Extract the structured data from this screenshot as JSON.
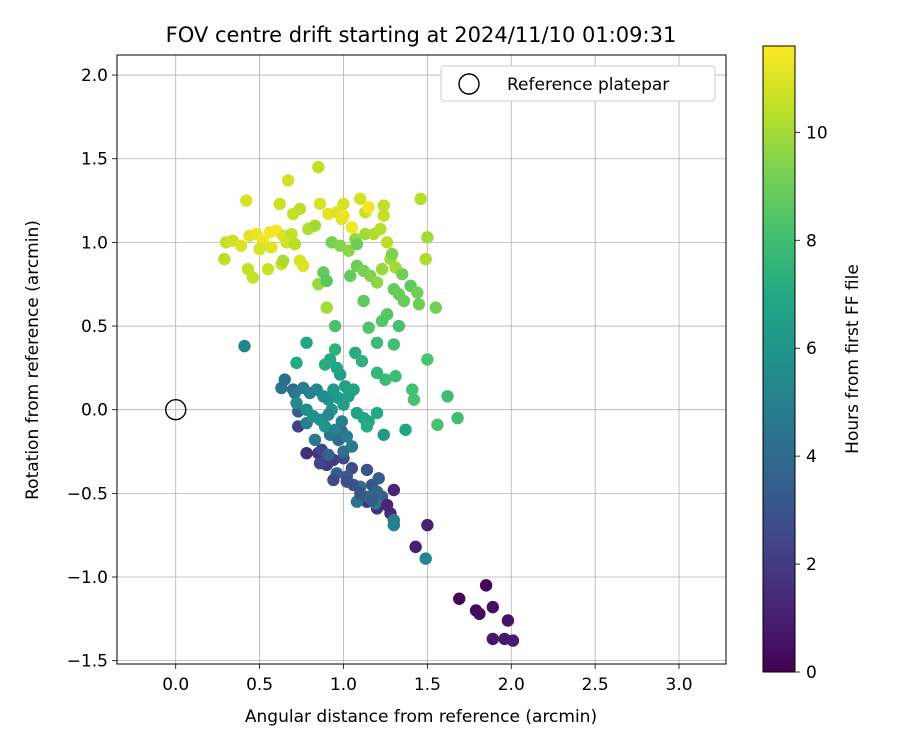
{
  "chart_data": {
    "type": "scatter",
    "title": "FOV centre drift starting at 2024/11/10 01:09:31",
    "xlabel": "Angular distance from reference (arcmin)",
    "ylabel": "Rotation from reference (arcmin)",
    "xlim": [
      -0.35,
      3.28
    ],
    "ylim": [
      -1.52,
      2.12
    ],
    "xticks": [
      "0.0",
      "0.5",
      "1.0",
      "1.5",
      "2.0",
      "2.5",
      "3.0"
    ],
    "yticks": [
      "−1.5",
      "−1.0",
      "−0.5",
      "0.0",
      "0.5",
      "1.0",
      "1.5",
      "2.0"
    ],
    "grid": true,
    "legend": {
      "placement": "top-right",
      "entries": [
        "Reference platepar"
      ]
    },
    "reference_point": {
      "x": 0.0,
      "y": 0.0,
      "marker": "open-circle"
    },
    "colorbar": {
      "label": "Hours from first FF file",
      "colormap": "viridis",
      "range": [
        0,
        11.6
      ],
      "ticks": [
        "0",
        "2",
        "4",
        "6",
        "8",
        "10"
      ]
    },
    "points": [
      {
        "x": 1.85,
        "y": -1.05,
        "t": 0.1
      },
      {
        "x": 1.69,
        "y": -1.13,
        "t": 0.2
      },
      {
        "x": 1.79,
        "y": -1.2,
        "t": 0.3
      },
      {
        "x": 1.81,
        "y": -1.22,
        "t": 0.4
      },
      {
        "x": 1.89,
        "y": -1.18,
        "t": 0.5
      },
      {
        "x": 1.98,
        "y": -1.26,
        "t": 0.6
      },
      {
        "x": 1.89,
        "y": -1.37,
        "t": 0.7
      },
      {
        "x": 1.96,
        "y": -1.37,
        "t": 0.8
      },
      {
        "x": 2.01,
        "y": -1.38,
        "t": 0.9
      },
      {
        "x": 1.43,
        "y": -0.82,
        "t": 1.0
      },
      {
        "x": 1.5,
        "y": -0.69,
        "t": 1.1
      },
      {
        "x": 1.3,
        "y": -0.48,
        "t": 1.2
      },
      {
        "x": 1.28,
        "y": -0.62,
        "t": 1.4
      },
      {
        "x": 1.2,
        "y": -0.59,
        "t": 1.6
      },
      {
        "x": 1.14,
        "y": -0.55,
        "t": 1.8
      },
      {
        "x": 0.9,
        "y": -0.33,
        "t": 1.9
      },
      {
        "x": 0.78,
        "y": -0.26,
        "t": 1.5
      },
      {
        "x": 0.85,
        "y": -0.26,
        "t": 1.7
      },
      {
        "x": 0.94,
        "y": -0.3,
        "t": 2.0
      },
      {
        "x": 0.73,
        "y": -0.1,
        "t": 2.2
      },
      {
        "x": 0.87,
        "y": -0.24,
        "t": 2.4
      },
      {
        "x": 1.0,
        "y": -0.29,
        "t": 2.6
      },
      {
        "x": 1.05,
        "y": -0.35,
        "t": 2.8
      },
      {
        "x": 1.14,
        "y": -0.36,
        "t": 3.0
      },
      {
        "x": 1.17,
        "y": -0.45,
        "t": 3.2
      },
      {
        "x": 1.21,
        "y": -0.41,
        "t": 3.4
      },
      {
        "x": 1.23,
        "y": -0.52,
        "t": 3.6
      },
      {
        "x": 1.2,
        "y": -0.49,
        "t": 3.8
      },
      {
        "x": 1.15,
        "y": -0.52,
        "t": 4.0
      },
      {
        "x": 1.1,
        "y": -0.46,
        "t": 4.2
      },
      {
        "x": 1.08,
        "y": -0.55,
        "t": 4.4
      },
      {
        "x": 1.19,
        "y": -0.56,
        "t": 4.6
      },
      {
        "x": 1.3,
        "y": -0.66,
        "t": 4.8
      },
      {
        "x": 1.3,
        "y": -0.69,
        "t": 5.0
      },
      {
        "x": 1.49,
        "y": -0.89,
        "t": 5.2
      },
      {
        "x": 0.41,
        "y": 0.38,
        "t": 5.2
      },
      {
        "x": 1.06,
        "y": -0.45,
        "t": 3.0
      },
      {
        "x": 1.02,
        "y": -0.4,
        "t": 3.3
      },
      {
        "x": 0.96,
        "y": -0.38,
        "t": 3.5
      },
      {
        "x": 0.91,
        "y": -0.27,
        "t": 3.7
      },
      {
        "x": 0.97,
        "y": -0.18,
        "t": 3.9
      },
      {
        "x": 0.99,
        "y": -0.13,
        "t": 4.1
      },
      {
        "x": 1.0,
        "y": -0.25,
        "t": 4.3
      },
      {
        "x": 0.92,
        "y": -0.15,
        "t": 4.5
      },
      {
        "x": 0.83,
        "y": -0.18,
        "t": 4.7
      },
      {
        "x": 0.78,
        "y": -0.08,
        "t": 4.9
      },
      {
        "x": 0.73,
        "y": -0.01,
        "t": 3.5
      },
      {
        "x": 0.7,
        "y": 0.12,
        "t": 3.9
      },
      {
        "x": 0.65,
        "y": 0.18,
        "t": 4.2
      },
      {
        "x": 0.63,
        "y": 0.13,
        "t": 4.4
      },
      {
        "x": 0.71,
        "y": 0.1,
        "t": 4.6
      },
      {
        "x": 0.76,
        "y": 0.13,
        "t": 4.8
      },
      {
        "x": 0.8,
        "y": 0.1,
        "t": 5.0
      },
      {
        "x": 0.84,
        "y": 0.12,
        "t": 5.2
      },
      {
        "x": 0.72,
        "y": 0.04,
        "t": 5.4
      },
      {
        "x": 0.78,
        "y": 0.0,
        "t": 5.6
      },
      {
        "x": 0.82,
        "y": -0.04,
        "t": 5.8
      },
      {
        "x": 0.86,
        "y": -0.06,
        "t": 6.0
      },
      {
        "x": 0.89,
        "y": -0.1,
        "t": 6.1
      },
      {
        "x": 0.93,
        "y": 0.0,
        "t": 6.2
      },
      {
        "x": 0.97,
        "y": 0.07,
        "t": 6.3
      },
      {
        "x": 1.0,
        "y": 0.03,
        "t": 6.4
      },
      {
        "x": 1.03,
        "y": 0.08,
        "t": 6.5
      },
      {
        "x": 1.06,
        "y": 0.12,
        "t": 6.6
      },
      {
        "x": 1.08,
        "y": -0.02,
        "t": 6.7
      },
      {
        "x": 1.12,
        "y": -0.05,
        "t": 6.8
      },
      {
        "x": 1.15,
        "y": -0.07,
        "t": 6.9
      },
      {
        "x": 1.2,
        "y": -0.02,
        "t": 7.0
      },
      {
        "x": 1.24,
        "y": -0.15,
        "t": 6.2
      },
      {
        "x": 1.37,
        "y": -0.12,
        "t": 6.8
      },
      {
        "x": 1.14,
        "y": -0.1,
        "t": 7.1
      },
      {
        "x": 0.91,
        "y": 0.06,
        "t": 6.0
      },
      {
        "x": 0.94,
        "y": 0.12,
        "t": 6.2
      },
      {
        "x": 0.98,
        "y": 0.21,
        "t": 6.4
      },
      {
        "x": 1.01,
        "y": 0.14,
        "t": 6.6
      },
      {
        "x": 0.96,
        "y": 0.25,
        "t": 6.8
      },
      {
        "x": 0.92,
        "y": 0.3,
        "t": 7.0
      },
      {
        "x": 0.89,
        "y": 0.27,
        "t": 7.2
      },
      {
        "x": 0.95,
        "y": 0.36,
        "t": 7.4
      },
      {
        "x": 0.72,
        "y": 0.28,
        "t": 7.0
      },
      {
        "x": 0.78,
        "y": 0.4,
        "t": 6.8
      },
      {
        "x": 1.07,
        "y": 0.34,
        "t": 7.2
      },
      {
        "x": 1.11,
        "y": 0.29,
        "t": 7.4
      },
      {
        "x": 1.2,
        "y": 0.22,
        "t": 7.6
      },
      {
        "x": 1.25,
        "y": 0.18,
        "t": 7.8
      },
      {
        "x": 1.31,
        "y": 0.2,
        "t": 8.0
      },
      {
        "x": 1.41,
        "y": 0.12,
        "t": 8.1
      },
      {
        "x": 1.42,
        "y": 0.06,
        "t": 8.2
      },
      {
        "x": 1.5,
        "y": 0.3,
        "t": 8.3
      },
      {
        "x": 1.62,
        "y": 0.08,
        "t": 7.9
      },
      {
        "x": 1.68,
        "y": -0.05,
        "t": 8.0
      },
      {
        "x": 1.56,
        "y": -0.09,
        "t": 8.2
      },
      {
        "x": 1.2,
        "y": 0.4,
        "t": 7.8
      },
      {
        "x": 1.3,
        "y": 0.39,
        "t": 8.0
      },
      {
        "x": 1.33,
        "y": 0.5,
        "t": 8.2
      },
      {
        "x": 1.15,
        "y": 0.49,
        "t": 8.4
      },
      {
        "x": 1.23,
        "y": 0.53,
        "t": 8.5
      },
      {
        "x": 1.26,
        "y": 0.57,
        "t": 8.6
      },
      {
        "x": 1.12,
        "y": 0.65,
        "t": 8.7
      },
      {
        "x": 1.3,
        "y": 0.72,
        "t": 8.8
      },
      {
        "x": 1.33,
        "y": 0.69,
        "t": 8.9
      },
      {
        "x": 1.45,
        "y": 0.63,
        "t": 9.0
      },
      {
        "x": 1.55,
        "y": 0.61,
        "t": 9.1
      },
      {
        "x": 0.95,
        "y": 0.5,
        "t": 8.2
      },
      {
        "x": 0.9,
        "y": 0.61,
        "t": 10.0
      },
      {
        "x": 0.85,
        "y": 0.75,
        "t": 9.8
      },
      {
        "x": 0.88,
        "y": 0.82,
        "t": 8.8
      },
      {
        "x": 0.9,
        "y": 0.77,
        "t": 8.6
      },
      {
        "x": 1.04,
        "y": 0.8,
        "t": 8.8
      },
      {
        "x": 1.08,
        "y": 0.86,
        "t": 9.0
      },
      {
        "x": 1.12,
        "y": 0.83,
        "t": 9.2
      },
      {
        "x": 1.16,
        "y": 0.8,
        "t": 9.4
      },
      {
        "x": 1.2,
        "y": 0.76,
        "t": 9.6
      },
      {
        "x": 1.23,
        "y": 0.84,
        "t": 9.8
      },
      {
        "x": 1.28,
        "y": 0.9,
        "t": 9.9
      },
      {
        "x": 1.31,
        "y": 0.85,
        "t": 10.0
      },
      {
        "x": 1.35,
        "y": 0.81,
        "t": 9.1
      },
      {
        "x": 1.29,
        "y": 0.93,
        "t": 9.3
      },
      {
        "x": 0.93,
        "y": 1.0,
        "t": 9.2
      },
      {
        "x": 0.98,
        "y": 0.98,
        "t": 9.4
      },
      {
        "x": 1.03,
        "y": 0.95,
        "t": 9.6
      },
      {
        "x": 1.07,
        "y": 1.02,
        "t": 9.8
      },
      {
        "x": 1.13,
        "y": 1.05,
        "t": 10.0
      },
      {
        "x": 1.18,
        "y": 1.05,
        "t": 10.2
      },
      {
        "x": 1.22,
        "y": 1.08,
        "t": 10.3
      },
      {
        "x": 1.26,
        "y": 1.0,
        "t": 10.4
      },
      {
        "x": 1.49,
        "y": 0.9,
        "t": 10.2
      },
      {
        "x": 1.5,
        "y": 1.03,
        "t": 10.0
      },
      {
        "x": 1.46,
        "y": 1.26,
        "t": 10.3
      },
      {
        "x": 1.24,
        "y": 1.22,
        "t": 10.5
      },
      {
        "x": 1.24,
        "y": 1.16,
        "t": 10.6
      },
      {
        "x": 1.13,
        "y": 1.18,
        "t": 10.7
      },
      {
        "x": 1.1,
        "y": 1.26,
        "t": 10.8
      },
      {
        "x": 1.0,
        "y": 1.23,
        "t": 10.9
      },
      {
        "x": 0.96,
        "y": 1.18,
        "t": 11.0
      },
      {
        "x": 0.91,
        "y": 1.17,
        "t": 11.1
      },
      {
        "x": 0.86,
        "y": 1.23,
        "t": 10.9
      },
      {
        "x": 0.85,
        "y": 1.45,
        "t": 10.5
      },
      {
        "x": 0.67,
        "y": 1.37,
        "t": 10.8
      },
      {
        "x": 0.62,
        "y": 1.23,
        "t": 10.7
      },
      {
        "x": 0.42,
        "y": 1.25,
        "t": 10.9
      },
      {
        "x": 0.7,
        "y": 1.17,
        "t": 10.6
      },
      {
        "x": 0.74,
        "y": 1.2,
        "t": 10.4
      },
      {
        "x": 0.79,
        "y": 1.08,
        "t": 10.2
      },
      {
        "x": 0.83,
        "y": 1.1,
        "t": 10.0
      },
      {
        "x": 0.99,
        "y": 1.14,
        "t": 11.2
      },
      {
        "x": 1.0,
        "y": 1.16,
        "t": 11.3
      },
      {
        "x": 1.05,
        "y": 1.09,
        "t": 11.4
      },
      {
        "x": 1.15,
        "y": 1.21,
        "t": 11.5
      },
      {
        "x": 0.3,
        "y": 1.0,
        "t": 10.6
      },
      {
        "x": 0.34,
        "y": 1.01,
        "t": 10.8
      },
      {
        "x": 0.39,
        "y": 0.98,
        "t": 11.0
      },
      {
        "x": 0.44,
        "y": 1.04,
        "t": 11.1
      },
      {
        "x": 0.48,
        "y": 1.05,
        "t": 11.2
      },
      {
        "x": 0.52,
        "y": 1.01,
        "t": 11.3
      },
      {
        "x": 0.56,
        "y": 1.06,
        "t": 11.4
      },
      {
        "x": 0.6,
        "y": 1.07,
        "t": 11.5
      },
      {
        "x": 0.64,
        "y": 1.04,
        "t": 11.0
      },
      {
        "x": 0.66,
        "y": 1.0,
        "t": 10.8
      },
      {
        "x": 0.69,
        "y": 1.05,
        "t": 10.6
      },
      {
        "x": 0.71,
        "y": 0.99,
        "t": 10.4
      },
      {
        "x": 0.57,
        "y": 0.97,
        "t": 11.1
      },
      {
        "x": 0.5,
        "y": 0.96,
        "t": 10.9
      },
      {
        "x": 0.29,
        "y": 0.9,
        "t": 10.4
      },
      {
        "x": 0.43,
        "y": 0.84,
        "t": 10.5
      },
      {
        "x": 0.46,
        "y": 0.79,
        "t": 10.6
      },
      {
        "x": 0.55,
        "y": 0.84,
        "t": 10.7
      },
      {
        "x": 0.63,
        "y": 0.87,
        "t": 10.8
      },
      {
        "x": 0.64,
        "y": 0.89,
        "t": 10.1
      },
      {
        "x": 0.74,
        "y": 0.89,
        "t": 10.9
      },
      {
        "x": 0.76,
        "y": 0.86,
        "t": 11.0
      },
      {
        "x": 1.08,
        "y": 0.99,
        "t": 9.0
      },
      {
        "x": 1.36,
        "y": 0.65,
        "t": 8.9
      },
      {
        "x": 1.4,
        "y": 0.74,
        "t": 8.7
      },
      {
        "x": 1.44,
        "y": 0.7,
        "t": 9.1
      },
      {
        "x": 0.88,
        "y": 0.08,
        "t": 5.6
      },
      {
        "x": 0.91,
        "y": -0.03,
        "t": 5.4
      },
      {
        "x": 0.95,
        "y": -0.12,
        "t": 5.2
      },
      {
        "x": 0.99,
        "y": -0.07,
        "t": 5.0
      },
      {
        "x": 1.02,
        "y": -0.16,
        "t": 4.9
      },
      {
        "x": 1.05,
        "y": -0.22,
        "t": 4.7
      },
      {
        "x": 0.86,
        "y": -0.32,
        "t": 2.4
      },
      {
        "x": 0.94,
        "y": -0.42,
        "t": 2.6
      },
      {
        "x": 1.02,
        "y": -0.43,
        "t": 2.8
      },
      {
        "x": 1.1,
        "y": -0.5,
        "t": 3.1
      },
      {
        "x": 1.17,
        "y": -0.54,
        "t": 3.3
      },
      {
        "x": 1.26,
        "y": -0.57,
        "t": 1.3
      }
    ]
  }
}
